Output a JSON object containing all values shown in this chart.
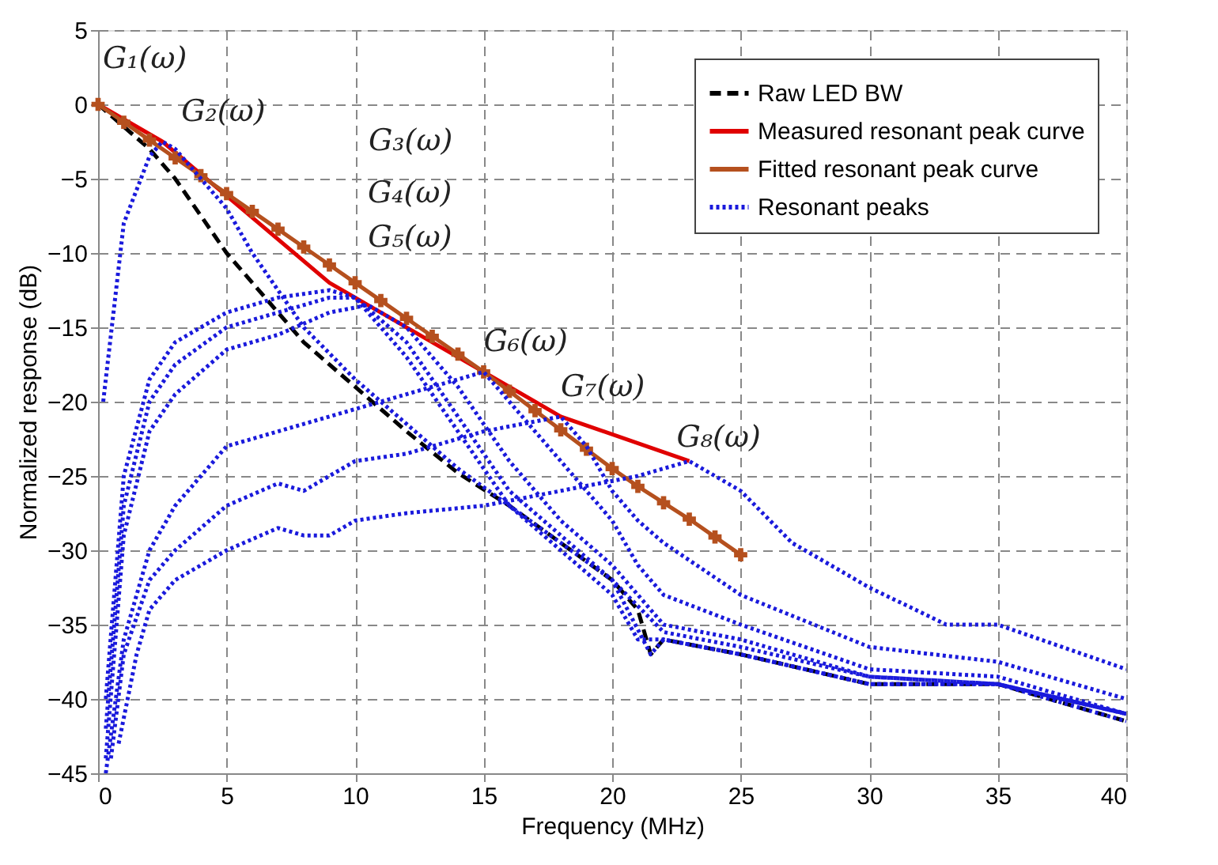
{
  "chart_data": {
    "type": "line",
    "xlabel": "Frequency (MHz)",
    "ylabel": "Normalized response (dB)",
    "xlim": [
      0,
      40
    ],
    "xticks": [
      0,
      5,
      10,
      15,
      20,
      25,
      30,
      35,
      40
    ],
    "ylim": [
      -45,
      5
    ],
    "yticks": [
      -45,
      -40,
      -35,
      -30,
      -25,
      -20,
      -15,
      -10,
      -5,
      0,
      5
    ],
    "grid": true,
    "legend": "top right",
    "series": [
      {
        "name": "Raw LED BW",
        "color": "#000000",
        "line_style": "dashed",
        "x": [
          0,
          1,
          2,
          3,
          4,
          5,
          6,
          7,
          8,
          10,
          12,
          14,
          16,
          18,
          20,
          21,
          21.5,
          22,
          25,
          30,
          35,
          40
        ],
        "values": [
          0,
          -1.5,
          -3,
          -5,
          -7.5,
          -10,
          -12,
          -14,
          -16,
          -19,
          -22,
          -24.8,
          -27,
          -29.5,
          -32,
          -34,
          -37,
          -36,
          -37,
          -39,
          -39,
          -41.5
        ]
      },
      {
        "name": "Measured resonant peak curve",
        "color": "#e00000",
        "line_style": "solid",
        "x": [
          0,
          2.5,
          9,
          10,
          10.5,
          15,
          18,
          23
        ],
        "values": [
          0,
          -2.5,
          -12,
          -13,
          -13.5,
          -18,
          -21,
          -24
        ]
      },
      {
        "name": "Fitted resonant peak curve",
        "color": "#b5501e",
        "line_style": "solid",
        "marker": "cross",
        "x": [
          0,
          1,
          2,
          3,
          4,
          5,
          6,
          7,
          8,
          9,
          10,
          11,
          12,
          13,
          14,
          15,
          16,
          17,
          18,
          19,
          20,
          21,
          22,
          23,
          24,
          25
        ],
        "values": [
          0,
          -1.2,
          -2.4,
          -3.6,
          -4.8,
          -6,
          -7.2,
          -8.4,
          -9.6,
          -10.8,
          -12,
          -13.2,
          -14.4,
          -15.6,
          -16.8,
          -18,
          -19.3,
          -20.6,
          -21.9,
          -23.2,
          -24.5,
          -25.7,
          -26.8,
          -27.9,
          -29.1,
          -30.3
        ]
      },
      {
        "name": "Resonant peaks",
        "color": "#1a1adc",
        "line_style": "dotted",
        "x": [
          0.2,
          1,
          2,
          2.5,
          3,
          4,
          5,
          6,
          7,
          8,
          10,
          12,
          14,
          16,
          18,
          20,
          21.5,
          22,
          25,
          30,
          35,
          40
        ],
        "values": [
          -20,
          -8,
          -3.5,
          -2.5,
          -3,
          -5,
          -7,
          -10,
          -12.5,
          -15,
          -18.5,
          -21.5,
          -24.5,
          -27,
          -29.5,
          -32,
          -37,
          -36,
          -37,
          -39,
          -39,
          -41
        ]
      },
      {
        "color": "#1a1adc",
        "line_style": "dotted",
        "x": [
          0.3,
          1,
          2,
          3,
          5,
          7,
          9,
          10,
          12,
          14,
          16,
          18,
          20,
          21,
          22,
          25,
          30,
          35,
          40
        ],
        "values": [
          -40,
          -25,
          -18.5,
          -16,
          -14,
          -13,
          -12.5,
          -13,
          -17,
          -22,
          -27,
          -30,
          -33,
          -36,
          -36,
          -37,
          -39,
          -39,
          -41
        ]
      },
      {
        "color": "#1a1adc",
        "line_style": "dotted",
        "x": [
          0.3,
          1,
          2,
          3,
          5,
          7,
          9,
          10,
          12,
          14,
          16,
          18,
          20,
          22,
          25,
          30,
          35,
          40
        ],
        "values": [
          -42,
          -27,
          -20,
          -17.5,
          -15,
          -14,
          -13,
          -13,
          -16,
          -21,
          -26,
          -29,
          -32,
          -35.5,
          -36.5,
          -38.5,
          -39,
          -41
        ]
      },
      {
        "color": "#1a1adc",
        "line_style": "dotted",
        "x": [
          0.3,
          1,
          2,
          3,
          5,
          7,
          9,
          10.5,
          12,
          14,
          16,
          18,
          20,
          22,
          25,
          30,
          35,
          40
        ],
        "values": [
          -44,
          -29,
          -22,
          -19.5,
          -16.5,
          -15.5,
          -14,
          -13.5,
          -15,
          -19,
          -24,
          -28,
          -31,
          -35,
          -36,
          -38.5,
          -39,
          -41.5
        ]
      },
      {
        "color": "#1a1adc",
        "line_style": "dotted",
        "x": [
          0.3,
          1,
          2,
          3,
          5,
          7,
          10,
          12,
          15,
          16,
          18,
          20,
          21,
          22,
          25,
          30,
          35,
          40
        ],
        "values": [
          -45,
          -36,
          -30,
          -27,
          -23,
          -22,
          -20.5,
          -19.5,
          -18,
          -20,
          -24,
          -28,
          -31,
          -33,
          -35,
          -38,
          -38.5,
          -41
        ]
      },
      {
        "color": "#1a1adc",
        "line_style": "dotted",
        "x": [
          0.5,
          1,
          2,
          3,
          5,
          7,
          8,
          10,
          12,
          15,
          18,
          19,
          20,
          21,
          22,
          25,
          30,
          35,
          40
        ],
        "values": [
          -44,
          -37,
          -32,
          -30,
          -27,
          -25.5,
          -26,
          -24,
          -23.5,
          -22,
          -21,
          -23,
          -26,
          -28,
          -29.5,
          -33,
          -36.5,
          -37.5,
          -40
        ]
      },
      {
        "color": "#1a1adc",
        "line_style": "dotted",
        "x": [
          0.8,
          1.5,
          2,
          3,
          5,
          7,
          8,
          9,
          10,
          12,
          15,
          18,
          21,
          23,
          25,
          27,
          30,
          33,
          35,
          40
        ],
        "values": [
          -43,
          -37,
          -34,
          -32,
          -30,
          -28.5,
          -29,
          -29,
          -28,
          -27.5,
          -27,
          -26,
          -25,
          -24,
          -26,
          -29.5,
          -32.5,
          -35,
          -35,
          -38
        ]
      }
    ],
    "annotations": [
      {
        "text": "G₁(ω)",
        "x": 0,
        "y": 0
      },
      {
        "text": "G₂(ω)",
        "x": 2.5,
        "y": -2.5
      },
      "G₃(ω)",
      {
        "text": "G₄(ω)",
        "x": 10,
        "y": -13
      },
      {
        "text": "G₅(ω)",
        "x": 10.5,
        "y": -13.5
      },
      {
        "text": "G₆(ω)",
        "x": 15,
        "y": -18
      },
      {
        "text": "G₇(ω)",
        "x": 18,
        "y": -21
      },
      {
        "text": "G₈(ω)",
        "x": 23,
        "y": -24
      }
    ]
  }
}
